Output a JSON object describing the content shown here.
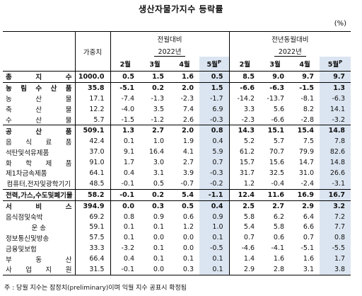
{
  "title": "생산자물가지수 등락률",
  "unit": "(%)",
  "header": {
    "weight": "가중치",
    "mom_group": "전월대비",
    "yoy_group": "전년동월대비",
    "year": "2022년",
    "months": [
      "2월",
      "3월",
      "4월",
      "5월"
    ],
    "preliminary_mark": "P"
  },
  "rows": [
    {
      "name": "총 지 수",
      "weight": "1000.0",
      "mom": [
        "0.5",
        "1.5",
        "1.6",
        "0.5"
      ],
      "yoy": [
        "8.5",
        "9.0",
        "9.7",
        "9.7"
      ],
      "bold": true,
      "rule": true
    },
    {
      "name": "농 림 수 산 품",
      "weight": "35.8",
      "mom": [
        "-5.1",
        "0.2",
        "2.0",
        "1.5"
      ],
      "yoy": [
        "-6.6",
        "-6.3",
        "-1.5",
        "1.3"
      ],
      "bold": true,
      "rule": true
    },
    {
      "name": "농 산 물",
      "weight": "17.1",
      "mom": [
        "-7.4",
        "-1.3",
        "-2.3",
        "-1.7"
      ],
      "yoy": [
        "-14.2",
        "-13.7",
        "-8.1",
        "-6.3"
      ]
    },
    {
      "name": "축 산 물",
      "weight": "12.2",
      "mom": [
        "-4.0",
        "3.5",
        "7.4",
        "6.9"
      ],
      "yoy": [
        "3.3",
        "5.6",
        "8.2",
        "14.1"
      ]
    },
    {
      "name": "수 산 물",
      "weight": "5.7",
      "mom": [
        "-1.5",
        "-1.2",
        "2.6",
        "-0.3"
      ],
      "yoy": [
        "-2.3",
        "-6.6",
        "-2.8",
        "-3.2"
      ]
    },
    {
      "name": "공 산 품",
      "weight": "509.1",
      "mom": [
        "1.3",
        "2.7",
        "2.0",
        "0.8"
      ],
      "yoy": [
        "14.3",
        "15.1",
        "15.4",
        "14.8"
      ],
      "bold": true,
      "rule": true
    },
    {
      "name": "음 식 료 품",
      "weight": "42.4",
      "mom": [
        "0.1",
        "1.0",
        "1.9",
        "0.4"
      ],
      "yoy": [
        "5.2",
        "5.7",
        "7.5",
        "7.8"
      ]
    },
    {
      "name": "석탄및석유제품",
      "weight": "37.0",
      "mom": [
        "9.1",
        "16.4",
        "4.1",
        "5.9"
      ],
      "yoy": [
        "61.2",
        "70.7",
        "79.9",
        "82.6"
      ]
    },
    {
      "name": "화 학 제 품",
      "weight": "91.0",
      "mom": [
        "1.7",
        "3.0",
        "2.7",
        "0.7"
      ],
      "yoy": [
        "15.7",
        "15.6",
        "14.7",
        "14.8"
      ]
    },
    {
      "name": "제1차금속제품",
      "weight": "64.1",
      "mom": [
        "0.4",
        "3.1",
        "3.9",
        "-0.3"
      ],
      "yoy": [
        "31.7",
        "32.5",
        "31.0",
        "26.6"
      ]
    },
    {
      "name": "컴퓨터,전자및광학기기",
      "weight": "48.5",
      "mom": [
        "-0.1",
        "0.5",
        "-0.7",
        "-0.2"
      ],
      "yoy": [
        "1.2",
        "-0.4",
        "-2.4",
        "-3.1"
      ]
    },
    {
      "name": "전력,가스,수도및폐기물",
      "weight": "58.2",
      "mom": [
        "-0.1",
        "0.2",
        "5.4",
        "-1.1"
      ],
      "yoy": [
        "12.4",
        "11.6",
        "16.9",
        "16.7"
      ],
      "bold": true,
      "rule": true
    },
    {
      "name": "서 비 스",
      "weight": "394.9",
      "mom": [
        "0.0",
        "0.3",
        "0.5",
        "0.4"
      ],
      "yoy": [
        "2.5",
        "2.7",
        "2.9",
        "3.2"
      ],
      "bold": true,
      "rule": true
    },
    {
      "name": "음식점및숙박",
      "weight": "69.2",
      "mom": [
        "0.8",
        "0.9",
        "0.6",
        "0.9"
      ],
      "yoy": [
        "5.8",
        "6.2",
        "6.4",
        "7.2"
      ]
    },
    {
      "name": "운 송",
      "weight": "59.1",
      "mom": [
        "0.1",
        "0.1",
        "1.2",
        "1.0"
      ],
      "yoy": [
        "5.4",
        "5.8",
        "6.6",
        "7.7"
      ]
    },
    {
      "name": "정보통신및방송",
      "weight": "57.5",
      "mom": [
        "0.1",
        "0.0",
        "0.0",
        "0.1"
      ],
      "yoy": [
        "0.7",
        "0.6",
        "0.7",
        "0.8"
      ]
    },
    {
      "name": "금융및보험",
      "weight": "33.3",
      "mom": [
        "-3.2",
        "0.1",
        "0.0",
        "-0.5"
      ],
      "yoy": [
        "-4.6",
        "-4.1",
        "-5.1",
        "-5.5"
      ]
    },
    {
      "name": "부 동 산",
      "weight": "66.4",
      "mom": [
        "0.4",
        "0.1",
        "0.1",
        "0.1"
      ],
      "yoy": [
        "1.4",
        "1.6",
        "1.6",
        "1.7"
      ]
    },
    {
      "name": "사 업 지 원",
      "weight": "31.5",
      "mom": [
        "-0.1",
        "0.0",
        "0.3",
        "0.1"
      ],
      "yoy": [
        "2.9",
        "2.8",
        "3.1",
        "3.8"
      ]
    }
  ],
  "note": "주 : 당월 지수는 잠정치(preliminary)이며 익월 지수 공표시 확정됨"
}
